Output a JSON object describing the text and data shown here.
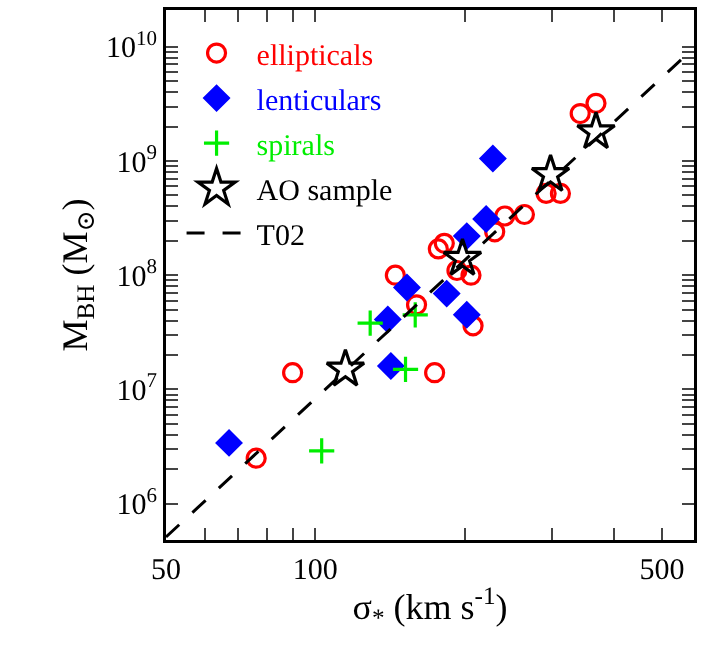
{
  "chart_data": {
    "type": "scatter",
    "xlabel": "σ$_{*}$ (km s$^{-1}$)",
    "ylabel": "M$_{BH}$ (M$_{⊙}$)",
    "log": "xy",
    "legend": "top left",
    "grid": false,
    "xlim": [
      50,
      580
    ],
    "ylim": [
      480000,
      21000000000
    ],
    "xticks": [
      50,
      {
        "value": 60,
        "label": null
      },
      {
        "value": 70,
        "label": null
      },
      {
        "value": 80,
        "label": null
      },
      {
        "value": 90,
        "label": null
      },
      100,
      {
        "value": 200,
        "label": null
      },
      {
        "value": 300,
        "label": null
      },
      {
        "value": 400,
        "label": null
      },
      500
    ],
    "yticks": [
      {
        "value": 1000000,
        "label": "10$^{6}$"
      },
      {
        "value": 2000000,
        "label": null
      },
      {
        "value": 3000000,
        "label": null
      },
      {
        "value": 4000000,
        "label": null
      },
      {
        "value": 5000000,
        "label": null
      },
      {
        "value": 6000000,
        "label": null
      },
      {
        "value": 7000000,
        "label": null
      },
      {
        "value": 8000000,
        "label": null
      },
      {
        "value": 9000000,
        "label": null
      },
      {
        "value": 10000000,
        "label": "10$^{7}$"
      },
      {
        "value": 20000000,
        "label": null
      },
      {
        "value": 30000000,
        "label": null
      },
      {
        "value": 40000000,
        "label": null
      },
      {
        "value": 50000000,
        "label": null
      },
      {
        "value": 60000000,
        "label": null
      },
      {
        "value": 70000000,
        "label": null
      },
      {
        "value": 80000000,
        "label": null
      },
      {
        "value": 90000000,
        "label": null
      },
      {
        "value": 100000000,
        "label": "10$^{8}$"
      },
      {
        "value": 200000000,
        "label": null
      },
      {
        "value": 300000000,
        "label": null
      },
      {
        "value": 400000000,
        "label": null
      },
      {
        "value": 500000000,
        "label": null
      },
      {
        "value": 600000000,
        "label": null
      },
      {
        "value": 700000000,
        "label": null
      },
      {
        "value": 800000000,
        "label": null
      },
      {
        "value": 900000000,
        "label": null
      },
      {
        "value": 1000000000,
        "label": "10$^{9}$"
      },
      {
        "value": 2000000000,
        "label": null
      },
      {
        "value": 3000000000,
        "label": null
      },
      {
        "value": 4000000000,
        "label": null
      },
      {
        "value": 5000000000,
        "label": null
      },
      {
        "value": 6000000000,
        "label": null
      },
      {
        "value": 7000000000,
        "label": null
      },
      {
        "value": 8000000000,
        "label": null
      },
      {
        "value": 9000000000,
        "label": null
      },
      {
        "value": 10000000000,
        "label": "10$^{10}$"
      }
    ],
    "series": [
      {
        "name": "ellipticals",
        "color": "#ff0000",
        "marker": "circle",
        "x": [
          342,
          368,
          292,
          312,
          241,
          264,
          230,
          177,
          182,
          206,
          193,
          145,
          160,
          208,
          90,
          174,
          76
        ],
        "values": [
          2600000000,
          3200000000,
          520000000,
          520000000,
          330000000,
          340000000,
          240000000,
          170000000,
          190000000,
          100000000,
          110000000,
          100000000,
          55000000,
          36000000,
          14000000,
          14000000,
          2500000
        ]
      },
      {
        "name": "lenticulars",
        "color": "#0000ff",
        "marker": "diamond",
        "x": [
          228,
          221,
          202,
          153,
          184,
          202,
          140,
          142,
          67
        ],
        "values": [
          1050000000,
          310000000,
          220000000,
          78000000,
          69000000,
          45000000,
          41000000,
          16000000,
          3400000
        ]
      },
      {
        "name": "spirals",
        "color": "#00ee00",
        "marker": "cross",
        "x": [
          129,
          159,
          152,
          103
        ],
        "values": [
          38000000,
          45000000,
          15000000,
          2900000
        ]
      },
      {
        "name": "AO sample",
        "color": "#000000",
        "marker": "star",
        "x": [
          368,
          298,
          198,
          115
        ],
        "values": [
          1800000000,
          760000000,
          140000000,
          15000000
        ]
      },
      {
        "name": "T02",
        "type": "line",
        "color": "#000000",
        "line_style": "dashed",
        "marker": "none",
        "x": [
          50,
          580
        ],
        "values": [
          510000,
          9800000000
        ]
      }
    ]
  }
}
